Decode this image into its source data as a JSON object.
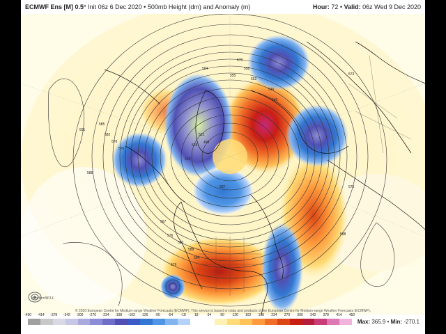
{
  "header": {
    "model": "ECMWF Ens [M] 0.5°",
    "info": "Init 06z 6 Dec 2020 • 500mb Height (dm) and Anomaly (m)",
    "hour_label": "Hour:",
    "hour_value": "72",
    "valid_label": "Valid:",
    "valid_value": "06z Wed 9 Dec 2020"
  },
  "credit": "© 2020 European Centre for Medium-range Weather Forecasts (ECMWF). This service is based on data and products of the European Centre for Medium-range Weather Forecasts (ECMWF).",
  "logo_text": "WeatherBELL",
  "colorbar": {
    "ticks": [
      "-450",
      "-414",
      "-378",
      "-342",
      "-306",
      "-270",
      "-234",
      "-198",
      "-162",
      "-126",
      "-90",
      "-54",
      "-18",
      "18",
      "54",
      "90",
      "126",
      "162",
      "198",
      "234",
      "270",
      "306",
      "342",
      "378",
      "414",
      "450"
    ],
    "colors": [
      "#a0a0a0",
      "#c8c8c8",
      "#d9d9e6",
      "#c6c6e6",
      "#a9a9de",
      "#8c8cd6",
      "#6e6ec8",
      "#5050b4",
      "#3c5ac8",
      "#3278d2",
      "#5096e6",
      "#82b4f0",
      "#b4d2fa",
      "#ffffff",
      "#ffffff",
      "#fff0b4",
      "#ffdc78",
      "#ffc35a",
      "#ff9b3c",
      "#f06e28",
      "#dc4614",
      "#c81e14",
      "#b41e3c",
      "#c83c78",
      "#dc78b4",
      "#f0b4dc"
    ]
  },
  "stats": {
    "max_label": "Max:",
    "max_value": "365.9",
    "min_label": "Min:",
    "min_value": "-270.1"
  },
  "contour_labels": [
    "591",
    "585",
    "582",
    "576",
    "570",
    "570",
    "564",
    "558",
    "555",
    "552",
    "546",
    "540",
    "534",
    "528",
    "522",
    "498",
    "507",
    "567",
    "576",
    "582",
    "588",
    "594",
    "573",
    "588",
    "576",
    "579",
    "588"
  ]
}
